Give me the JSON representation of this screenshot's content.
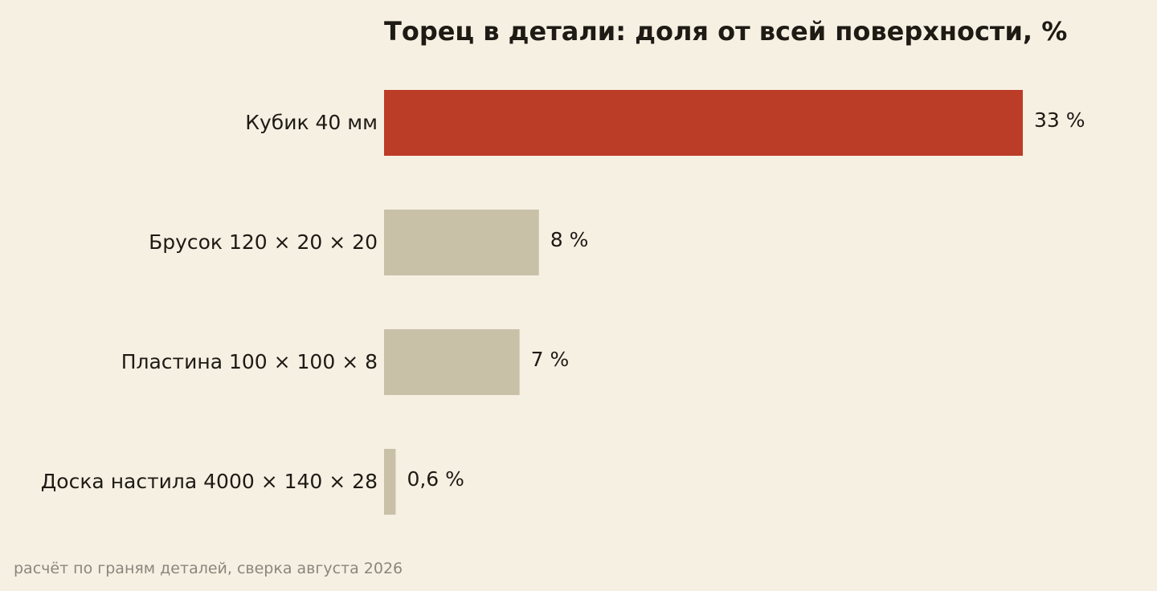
{
  "chart_data": {
    "type": "bar",
    "orientation": "horizontal",
    "title": "Торец в детали: доля от всей поверхности, %",
    "categories": [
      "Кубик 40 мм",
      "Брусок 120 × 20 × 20",
      "Пластина 100 × 100 × 8",
      "Доска настила 4000 × 140 × 28"
    ],
    "values": [
      33,
      8,
      7,
      0.6
    ],
    "value_labels": [
      "33 %",
      "8 %",
      "7 %",
      "0,6 %"
    ],
    "xlabel": "",
    "ylabel": "",
    "xlim": [
      0,
      33
    ],
    "grid": false,
    "legend": "none",
    "colors": {
      "highlight": "#bc3d27",
      "default": "#c9c0a8",
      "background": "#f6f0e3"
    },
    "highlight_index": 0
  },
  "footnote": "расчёт по граням деталей, сверка августа 2026"
}
